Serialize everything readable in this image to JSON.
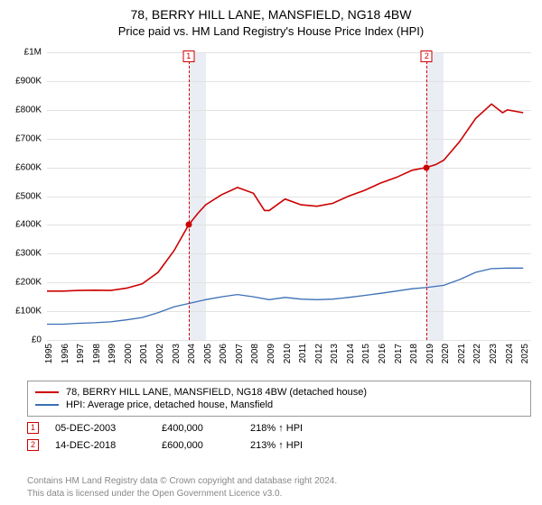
{
  "header": {
    "title": "78, BERRY HILL LANE, MANSFIELD, NG18 4BW",
    "subtitle": "Price paid vs. HM Land Registry's House Price Index (HPI)"
  },
  "chart": {
    "type": "line",
    "background_color": "#ffffff",
    "grid_color": "#e2e2e2",
    "tick_font_size": 10,
    "ylim": [
      0,
      1000000
    ],
    "yticks": [
      0,
      100000,
      200000,
      300000,
      400000,
      500000,
      600000,
      700000,
      800000,
      900000,
      1000000
    ],
    "ytick_labels": [
      "£0",
      "£100K",
      "£200K",
      "£300K",
      "£400K",
      "£500K",
      "£600K",
      "£700K",
      "£800K",
      "£900K",
      "£1M"
    ],
    "xlim": [
      1995,
      2025.5
    ],
    "xticks": [
      1995,
      1996,
      1997,
      1998,
      1999,
      2000,
      2001,
      2002,
      2003,
      2004,
      2005,
      2006,
      2007,
      2008,
      2009,
      2010,
      2011,
      2012,
      2013,
      2014,
      2015,
      2016,
      2017,
      2018,
      2019,
      2020,
      2021,
      2022,
      2023,
      2024,
      2025
    ],
    "highlight_bands": [
      {
        "from": 2003.92,
        "to": 2005.0,
        "color": "#e7eaf2"
      },
      {
        "from": 2018.92,
        "to": 2020.0,
        "color": "#e7eaf2"
      }
    ],
    "event_lines": [
      {
        "x": 2003.92,
        "label": "1",
        "color": "#cc0000"
      },
      {
        "x": 2018.92,
        "label": "2",
        "color": "#cc0000"
      }
    ],
    "series": [
      {
        "id": "property",
        "color": "#cc0000",
        "line_width": 1.6,
        "points": [
          [
            1995,
            170000
          ],
          [
            1996,
            170000
          ],
          [
            1997,
            172000
          ],
          [
            1998,
            173000
          ],
          [
            1999,
            172000
          ],
          [
            2000,
            180000
          ],
          [
            2001,
            195000
          ],
          [
            2002,
            235000
          ],
          [
            2003,
            310000
          ],
          [
            2003.92,
            400000
          ],
          [
            2004.5,
            440000
          ],
          [
            2005,
            470000
          ],
          [
            2006,
            505000
          ],
          [
            2007,
            530000
          ],
          [
            2008,
            510000
          ],
          [
            2008.7,
            450000
          ],
          [
            2009,
            450000
          ],
          [
            2010,
            490000
          ],
          [
            2011,
            470000
          ],
          [
            2012,
            465000
          ],
          [
            2013,
            475000
          ],
          [
            2014,
            500000
          ],
          [
            2015,
            520000
          ],
          [
            2016,
            545000
          ],
          [
            2017,
            565000
          ],
          [
            2018,
            590000
          ],
          [
            2018.92,
            600000
          ],
          [
            2019.5,
            610000
          ],
          [
            2020,
            625000
          ],
          [
            2021,
            690000
          ],
          [
            2022,
            770000
          ],
          [
            2023,
            820000
          ],
          [
            2023.7,
            790000
          ],
          [
            2024,
            800000
          ],
          [
            2025,
            790000
          ]
        ],
        "markers": [
          {
            "x": 2003.92,
            "y": 400000,
            "color": "#cc0000"
          },
          {
            "x": 2018.92,
            "y": 600000,
            "color": "#cc0000"
          }
        ]
      },
      {
        "id": "hpi",
        "color": "#3b6fb6",
        "line_width": 1.3,
        "points": [
          [
            1995,
            55000
          ],
          [
            1996,
            55000
          ],
          [
            1997,
            58000
          ],
          [
            1998,
            60000
          ],
          [
            1999,
            63000
          ],
          [
            2000,
            70000
          ],
          [
            2001,
            78000
          ],
          [
            2002,
            95000
          ],
          [
            2003,
            115000
          ],
          [
            2004,
            128000
          ],
          [
            2005,
            140000
          ],
          [
            2006,
            150000
          ],
          [
            2007,
            158000
          ],
          [
            2008,
            150000
          ],
          [
            2009,
            140000
          ],
          [
            2010,
            148000
          ],
          [
            2011,
            142000
          ],
          [
            2012,
            140000
          ],
          [
            2013,
            142000
          ],
          [
            2014,
            148000
          ],
          [
            2015,
            155000
          ],
          [
            2016,
            162000
          ],
          [
            2017,
            170000
          ],
          [
            2018,
            178000
          ],
          [
            2019,
            183000
          ],
          [
            2020,
            190000
          ],
          [
            2021,
            210000
          ],
          [
            2022,
            235000
          ],
          [
            2023,
            248000
          ],
          [
            2024,
            250000
          ],
          [
            2025,
            250000
          ]
        ]
      }
    ]
  },
  "legend": {
    "items": [
      {
        "color": "#cc0000",
        "label": "78, BERRY HILL LANE, MANSFIELD, NG18 4BW (detached house)"
      },
      {
        "color": "#3b6fb6",
        "label": "HPI: Average price, detached house, Mansfield"
      }
    ]
  },
  "events": [
    {
      "marker": "1",
      "date": "05-DEC-2003",
      "price": "£400,000",
      "delta": "218% ↑ HPI"
    },
    {
      "marker": "2",
      "date": "14-DEC-2018",
      "price": "£600,000",
      "delta": "213% ↑ HPI"
    }
  ],
  "footer": {
    "line1": "Contains HM Land Registry data © Crown copyright and database right 2024.",
    "line2": "This data is licensed under the Open Government Licence v3.0."
  }
}
